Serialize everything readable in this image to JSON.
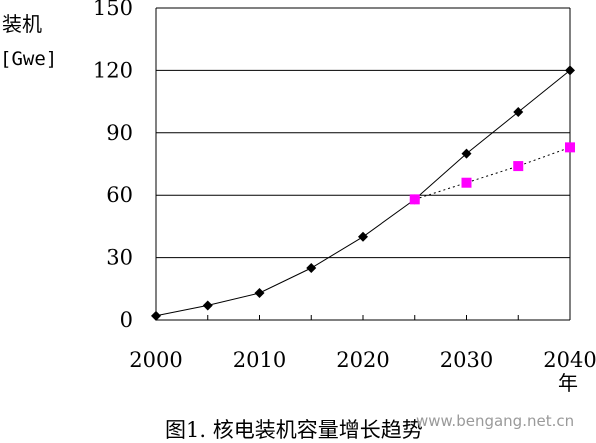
{
  "chart_data": {
    "type": "line",
    "ylabel": "装机",
    "yunit": "[Gwe]",
    "xlabel": "年",
    "caption": "图1. 核电装机容量增长趋势",
    "ylim": [
      0,
      150
    ],
    "xlim": [
      2000,
      2040
    ],
    "yticks": [
      "0",
      "30",
      "60",
      "90",
      "120",
      "150"
    ],
    "xticks": [
      "2000",
      "2010",
      "2020",
      "2030",
      "2040"
    ],
    "grid": "horizontal",
    "series": [
      {
        "line_style": "solid",
        "marker": "diamond",
        "color": "#000000",
        "x": [
          2000,
          2005,
          2010,
          2015,
          2020,
          2025,
          2030,
          2035,
          2040
        ],
        "values": [
          2,
          7,
          13,
          25,
          40,
          58,
          80,
          100,
          120
        ]
      },
      {
        "line_style": "dotted",
        "marker": "square",
        "color": "#ff00ff",
        "x": [
          2025,
          2030,
          2035,
          2040
        ],
        "values": [
          58,
          66,
          74,
          83
        ]
      }
    ]
  },
  "watermark": "www.bengang.net.cn"
}
